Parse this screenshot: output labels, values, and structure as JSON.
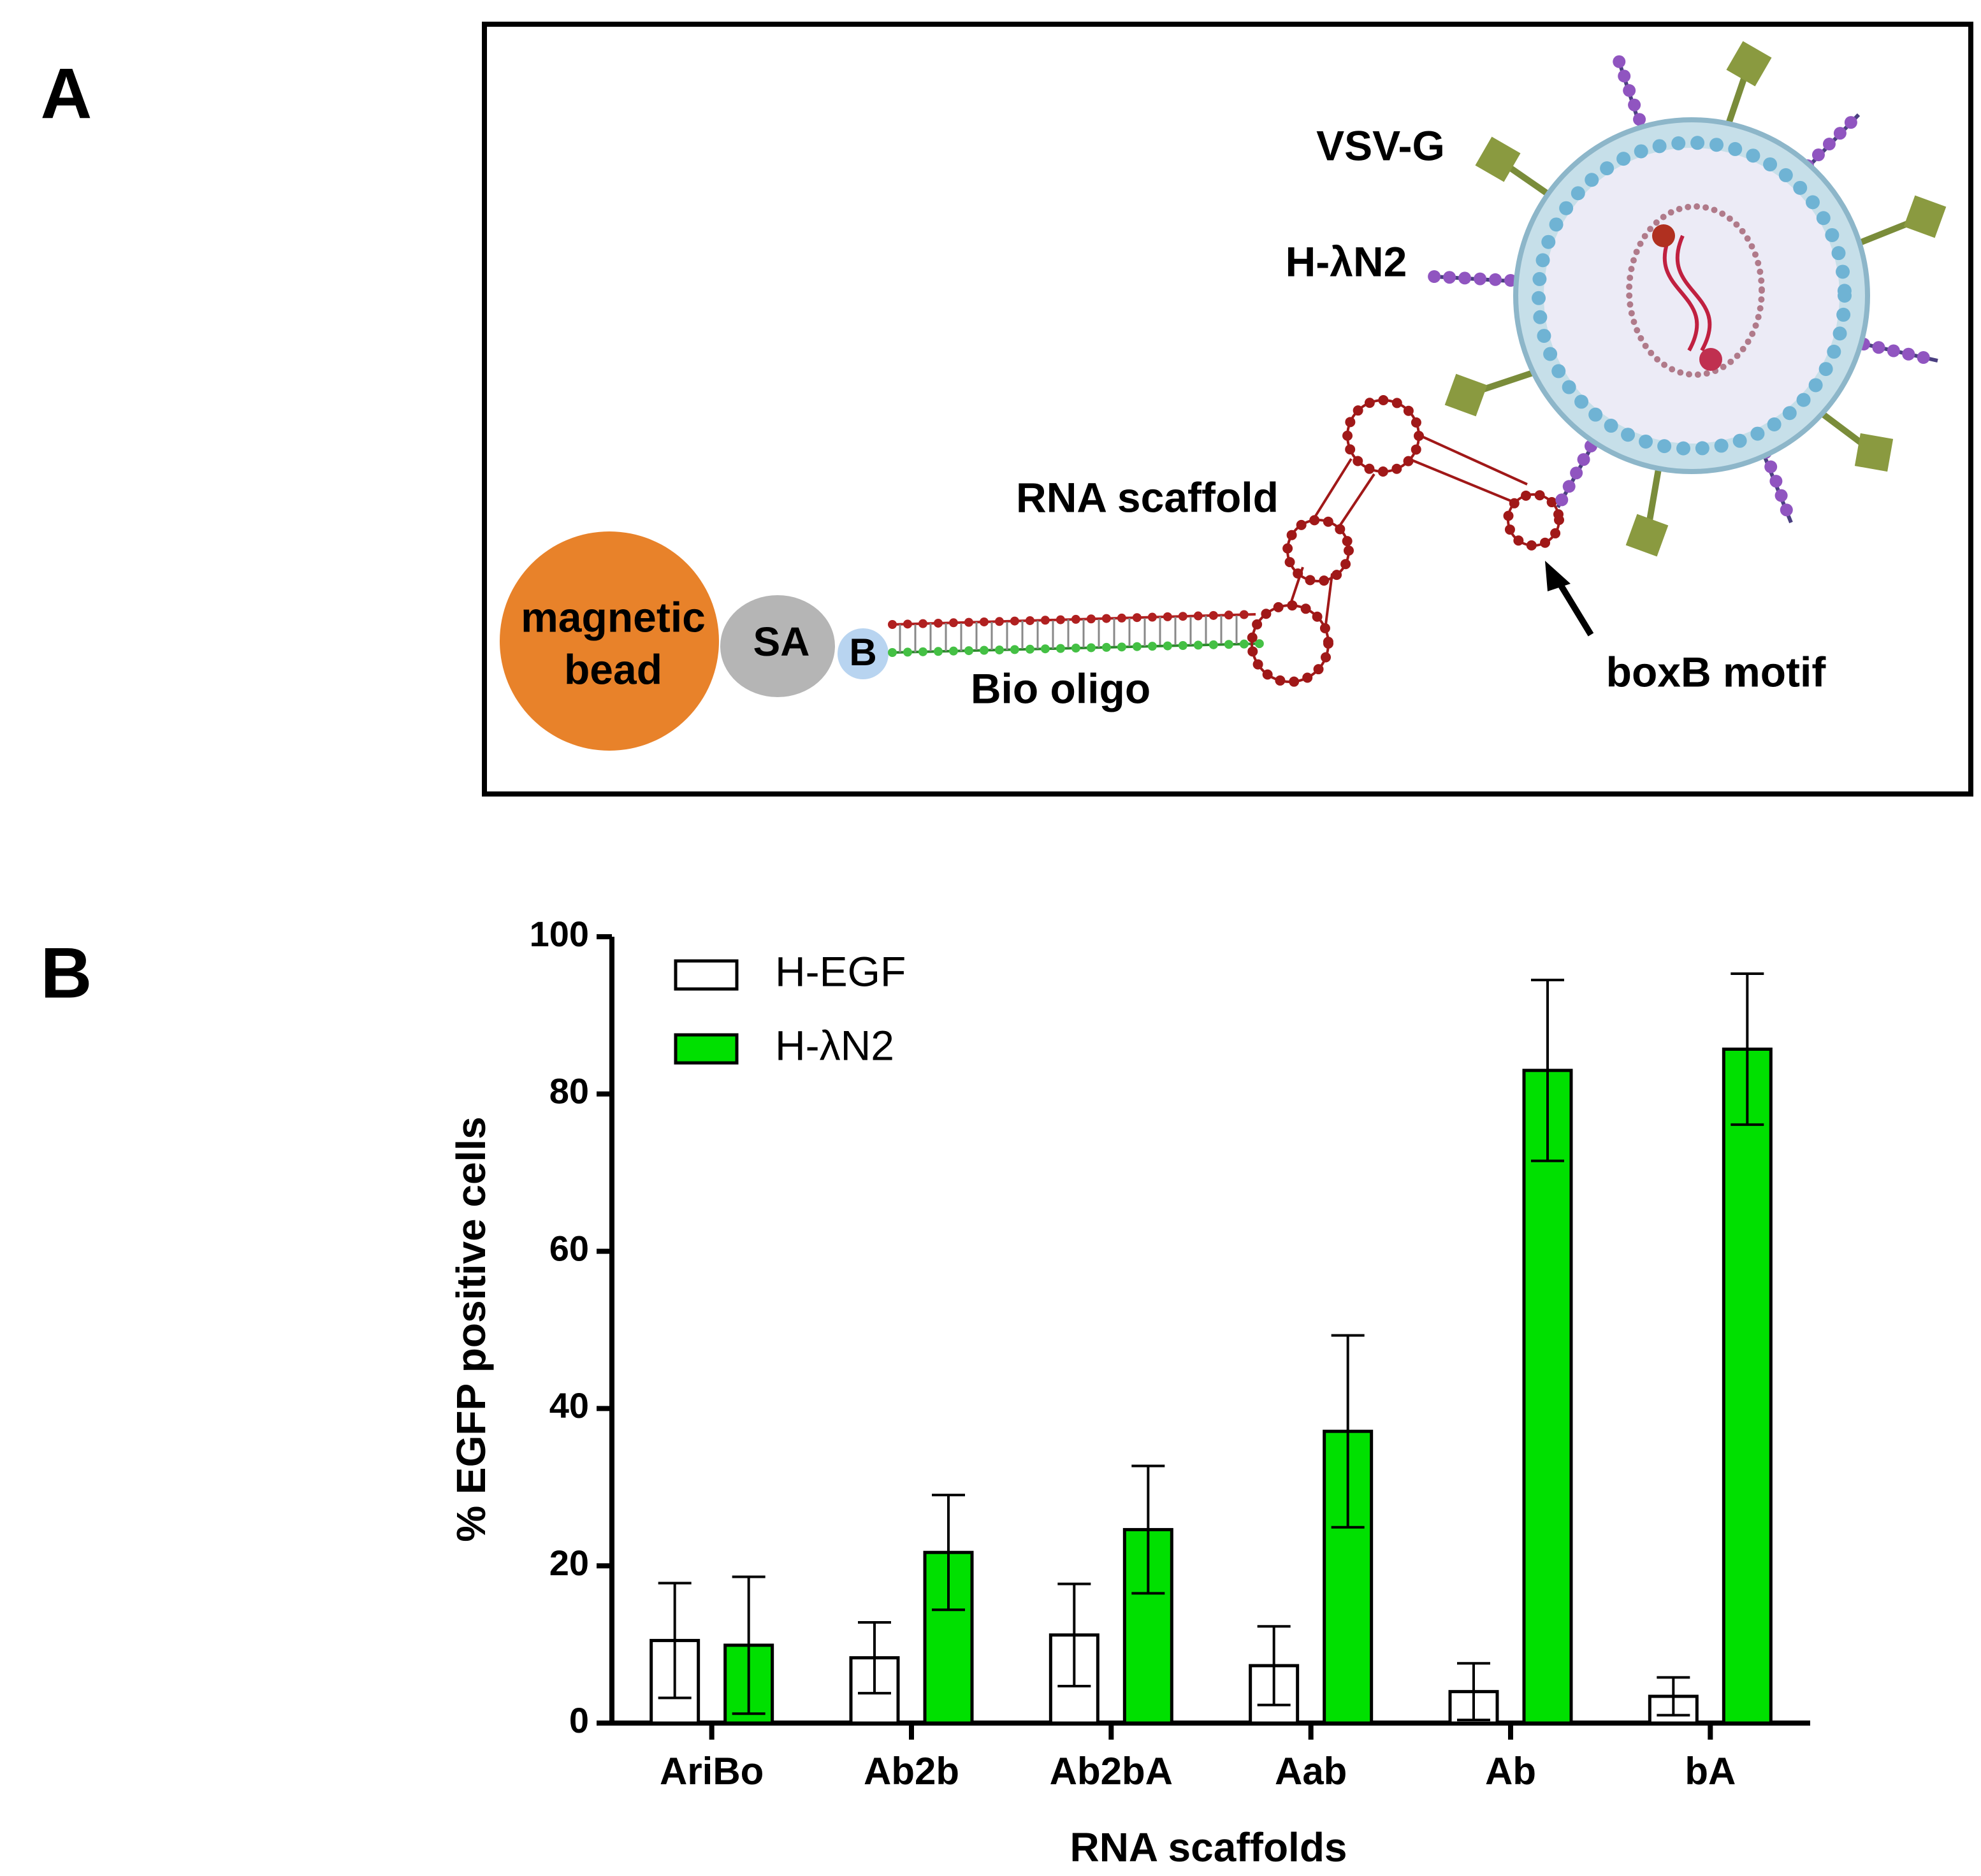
{
  "panel_labels": [
    "A",
    "B"
  ],
  "diagram": {
    "bead_label": [
      "magnetic",
      "bead"
    ],
    "streptavidin": "SA",
    "biotin": "B",
    "oligo": "Bio oligo",
    "scaffold": "RNA scaffold",
    "motif": "boxB motif",
    "glycoprotein": "VSV-G",
    "ligand": "H-λN2"
  },
  "chart_data": {
    "type": "bar",
    "xlabel": "RNA scaffolds",
    "ylabel": "% EGFP positive cells",
    "categories": [
      "AriBo",
      "Ab2b",
      "Ab2bA",
      "Aab",
      "Ab",
      "bA"
    ],
    "series": [
      {
        "name": "H-EGF",
        "color": "#ffffff",
        "values": [
          10.5,
          8.3,
          11.2,
          7.3,
          4,
          3.4
        ],
        "errors": [
          7.3,
          4.5,
          6.5,
          5,
          3.6,
          2.4
        ]
      },
      {
        "name": "H-λN2",
        "color": "#00e000",
        "values": [
          9.9,
          21.7,
          24.6,
          37.1,
          83,
          85.7
        ],
        "errors": [
          8.7,
          7.3,
          8.1,
          12.2,
          11.5,
          9.6
        ]
      }
    ],
    "ylim": [
      0,
      100
    ],
    "yticks": [
      0,
      20,
      40,
      60,
      80,
      100
    ],
    "legend": "top-left"
  }
}
